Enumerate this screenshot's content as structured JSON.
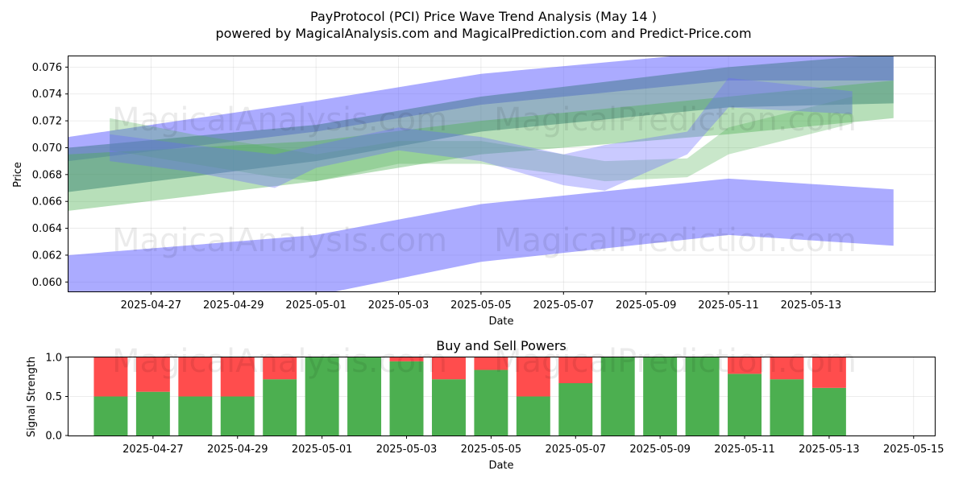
{
  "header": {
    "title": "PayProtocol (PCI) Price Wave Trend Analysis (May 14 )",
    "subtitle": "powered by MagicalAnalysis.com and MagicalPrediction.com and Predict-Price.com"
  },
  "watermarks": [
    "MagicalAnalysis.com",
    "MagicalPrediction.com"
  ],
  "colors": {
    "blue_band": "#6666ff",
    "green_band": "#4caf50",
    "buy": "#4caf50",
    "sell": "#ff4d4d"
  },
  "chart_data": [
    {
      "type": "area",
      "title": "",
      "xlabel": "Date",
      "ylabel": "Price",
      "xlim": [
        "2025-04-25",
        "2025-05-16"
      ],
      "ylim": [
        0.0593,
        0.0768
      ],
      "grid": true,
      "x_ticks": [
        "2025-04-27",
        "2025-04-29",
        "2025-05-01",
        "2025-05-03",
        "2025-05-05",
        "2025-05-07",
        "2025-05-09",
        "2025-05-11",
        "2025-05-13"
      ],
      "y_ticks": [
        "0.060",
        "0.062",
        "0.064",
        "0.066",
        "0.068",
        "0.070",
        "0.072",
        "0.074",
        "0.076"
      ],
      "bands": [
        {
          "color": "blue",
          "opacity": 0.55,
          "x": [
            "2025-04-25",
            "2025-05-01",
            "2025-05-05",
            "2025-05-11",
            "2025-05-15"
          ],
          "upper": [
            0.0708,
            0.0735,
            0.0755,
            0.0772,
            0.0772
          ],
          "lower": [
            0.069,
            0.0712,
            0.0732,
            0.075,
            0.075
          ]
        },
        {
          "color": "blue",
          "opacity": 0.55,
          "x": [
            "2025-04-25",
            "2025-05-01",
            "2025-05-05",
            "2025-05-11",
            "2025-05-15"
          ],
          "upper": [
            0.062,
            0.0635,
            0.0658,
            0.0677,
            0.0669
          ],
          "lower": [
            0.0583,
            0.059,
            0.0615,
            0.0635,
            0.0627
          ]
        },
        {
          "color": "slate",
          "opacity": 0.6,
          "x": [
            "2025-04-25",
            "2025-05-01",
            "2025-05-05",
            "2025-05-11",
            "2025-05-15"
          ],
          "upper": [
            0.07,
            0.0717,
            0.0738,
            0.076,
            0.077
          ],
          "lower": [
            0.0667,
            0.069,
            0.0712,
            0.073,
            0.0733
          ]
        },
        {
          "color": "green",
          "opacity": 0.4,
          "x": [
            "2025-04-25",
            "2025-05-01",
            "2025-05-05",
            "2025-05-11",
            "2025-05-15"
          ],
          "upper": [
            0.0695,
            0.0705,
            0.072,
            0.0738,
            0.075
          ],
          "lower": [
            0.0653,
            0.0675,
            0.0695,
            0.071,
            0.0722
          ]
        },
        {
          "color": "green",
          "opacity": 0.3,
          "x": [
            "2025-04-26",
            "2025-04-28",
            "2025-04-30",
            "2025-05-01",
            "2025-05-03",
            "2025-05-05",
            "2025-05-07",
            "2025-05-08",
            "2025-05-10",
            "2025-05-11",
            "2025-05-14"
          ],
          "upper": [
            0.0722,
            0.071,
            0.07,
            0.0695,
            0.0705,
            0.0705,
            0.0695,
            0.069,
            0.0692,
            0.0715,
            0.0738
          ],
          "lower": [
            0.0698,
            0.0688,
            0.0678,
            0.0675,
            0.0688,
            0.0688,
            0.068,
            0.0675,
            0.0678,
            0.0695,
            0.0718
          ]
        },
        {
          "color": "blue",
          "opacity": 0.35,
          "x": [
            "2025-04-26",
            "2025-04-28",
            "2025-04-30",
            "2025-05-01",
            "2025-05-03",
            "2025-05-05",
            "2025-05-07",
            "2025-05-08",
            "2025-05-10",
            "2025-05-11",
            "2025-05-14"
          ],
          "upper": [
            0.071,
            0.0702,
            0.0695,
            0.0702,
            0.0715,
            0.0708,
            0.0695,
            0.0702,
            0.0712,
            0.0752,
            0.0742
          ],
          "lower": [
            0.069,
            0.0682,
            0.067,
            0.0685,
            0.0698,
            0.069,
            0.0672,
            0.0668,
            0.0695,
            0.073,
            0.0725
          ]
        }
      ]
    },
    {
      "type": "bar",
      "title": "Buy and Sell Powers",
      "xlabel": "Date",
      "ylabel": "Signal Strength",
      "xlim": [
        "2025-04-25",
        "2025-05-15.5"
      ],
      "ylim": [
        0,
        1
      ],
      "grid": true,
      "x_ticks": [
        "2025-04-27",
        "2025-04-29",
        "2025-05-01",
        "2025-05-03",
        "2025-05-05",
        "2025-05-07",
        "2025-05-09",
        "2025-05-11",
        "2025-05-13",
        "2025-05-15"
      ],
      "y_ticks": [
        "0.0",
        "0.5",
        "1.0"
      ],
      "categories": [
        "2025-04-26",
        "2025-04-27",
        "2025-04-28",
        "2025-04-29",
        "2025-04-30",
        "2025-05-01",
        "2025-05-02",
        "2025-05-03",
        "2025-05-04",
        "2025-05-05",
        "2025-05-06",
        "2025-05-07",
        "2025-05-08",
        "2025-05-09",
        "2025-05-10",
        "2025-05-11",
        "2025-05-12",
        "2025-05-13"
      ],
      "series": [
        {
          "name": "Buy",
          "values": [
            0.5,
            0.56,
            0.5,
            0.5,
            0.72,
            1.0,
            1.0,
            0.95,
            0.72,
            0.84,
            0.5,
            0.67,
            1.0,
            1.0,
            1.0,
            0.79,
            0.72,
            0.61
          ]
        },
        {
          "name": "Sell",
          "values": [
            0.5,
            0.44,
            0.5,
            0.5,
            0.28,
            0.0,
            0.0,
            0.05,
            0.28,
            0.16,
            0.5,
            0.33,
            0.0,
            0.0,
            0.0,
            0.21,
            0.28,
            0.39
          ]
        }
      ]
    }
  ]
}
